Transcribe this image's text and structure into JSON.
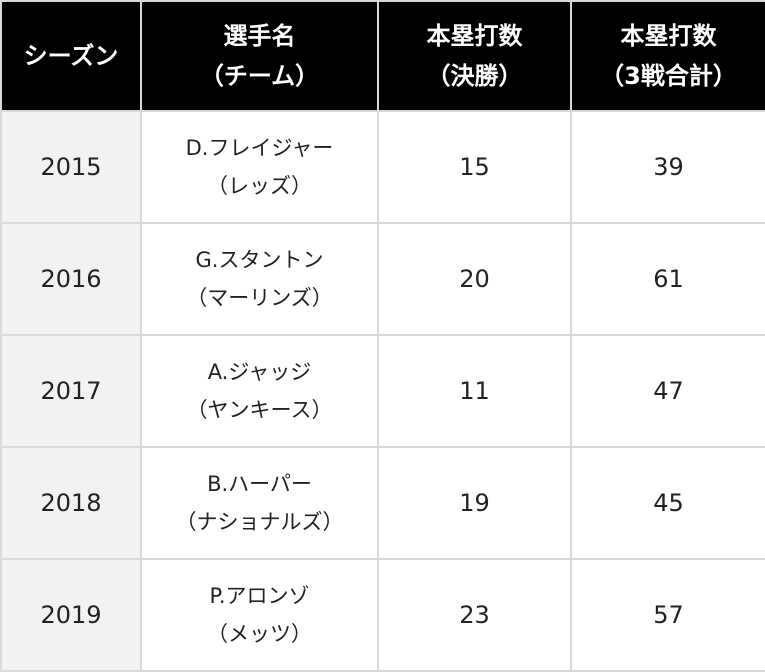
{
  "headers": [
    [
      "シーズン"
    ],
    [
      "選手名",
      "（チーム）"
    ],
    [
      "本塁打数",
      "（決勝）"
    ],
    [
      "本塁打数",
      "（3戦合計）"
    ]
  ],
  "rows": [
    {
      "season": "2015",
      "player": "D.フレイジャー",
      "team": "（レッズ）",
      "final_hr": "15",
      "total_hr": "39"
    },
    {
      "season": "2016",
      "player": "G.スタントン",
      "team": "（マーリンズ）",
      "final_hr": "20",
      "total_hr": "61"
    },
    {
      "season": "2017",
      "player": "A.ジャッジ",
      "team": "（ヤンキース）",
      "final_hr": "11",
      "total_hr": "47"
    },
    {
      "season": "2018",
      "player": "B.ハーパー",
      "team": "（ナショナルズ）",
      "final_hr": "19",
      "total_hr": "45"
    },
    {
      "season": "2019",
      "player": "P.アロンゾ",
      "team": "（メッツ）",
      "final_hr": "23",
      "total_hr": "57"
    }
  ]
}
